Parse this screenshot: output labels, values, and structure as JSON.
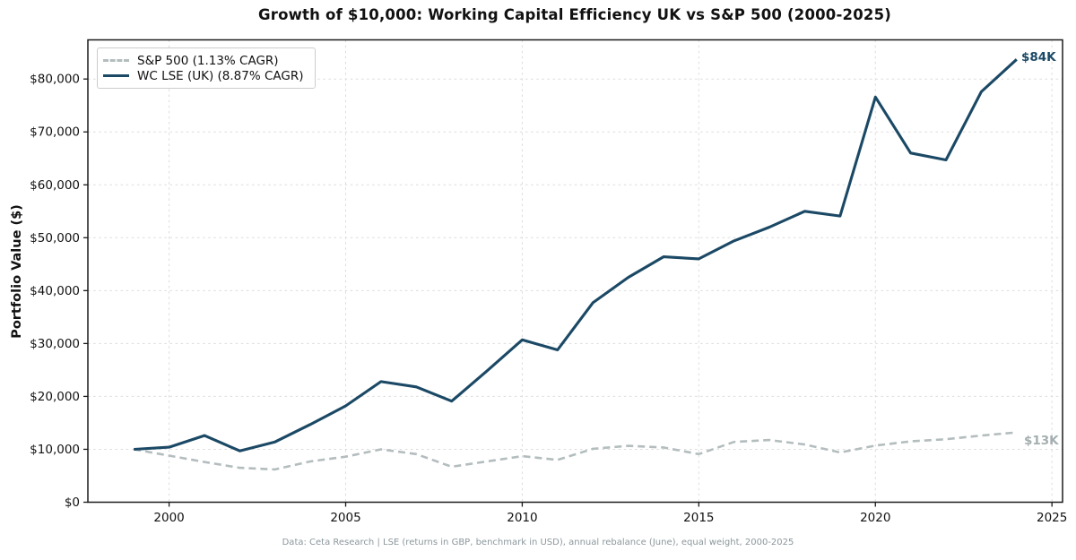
{
  "title": "Growth of $10,000: Working Capital Efficiency UK vs S&P 500 (2000-2025)",
  "y_axis_label": "Portfolio Value ($)",
  "footer": "Data: Ceta Research | LSE (returns in GBP, benchmark in USD), annual rebalance (June), equal weight, 2000-2025",
  "legend": {
    "items": [
      {
        "label": "S&P 500 (1.13% CAGR)"
      },
      {
        "label": "WC LSE (UK) (8.87% CAGR)"
      }
    ]
  },
  "colors": {
    "wc_line": "#1b4965",
    "sp_line": "#b4bdbe",
    "grid": "#dcdcdc",
    "spine": "#1a1a1a",
    "footer_text": "#8b979c"
  },
  "chart_data": {
    "type": "line",
    "title": "Growth of $10,000: Working Capital Efficiency UK vs S&P 500 (2000-2025)",
    "xlabel": "",
    "ylabel": "Portfolio Value ($)",
    "grid": true,
    "legend_position": "upper-left",
    "xlim": [
      1997.7,
      2025.3
    ],
    "ylim": [
      0,
      87400
    ],
    "x": [
      1999,
      2000,
      2001,
      2002,
      2003,
      2004,
      2005,
      2006,
      2007,
      2008,
      2009,
      2010,
      2011,
      2012,
      2013,
      2014,
      2015,
      2016,
      2017,
      2018,
      2019,
      2020,
      2021,
      2022,
      2023,
      2024
    ],
    "x_ticks": [
      {
        "value": 2000,
        "label": "2000"
      },
      {
        "value": 2005,
        "label": "2005"
      },
      {
        "value": 2010,
        "label": "2010"
      },
      {
        "value": 2015,
        "label": "2015"
      },
      {
        "value": 2020,
        "label": "2020"
      },
      {
        "value": 2025,
        "label": "2025"
      }
    ],
    "y_ticks": [
      {
        "value": 0,
        "label": "$0"
      },
      {
        "value": 10000,
        "label": "$10,000"
      },
      {
        "value": 20000,
        "label": "$20,000"
      },
      {
        "value": 30000,
        "label": "$30,000"
      },
      {
        "value": 40000,
        "label": "$40,000"
      },
      {
        "value": 50000,
        "label": "$50,000"
      },
      {
        "value": 60000,
        "label": "$60,000"
      },
      {
        "value": 70000,
        "label": "$70,000"
      },
      {
        "value": 80000,
        "label": "$80,000"
      }
    ],
    "series": [
      {
        "name": "S&P 500 (1.13% CAGR)",
        "color": "#b4bdbe",
        "dash": true,
        "width": 2.6,
        "end_label": "$13K",
        "values": [
          10000,
          8800,
          7600,
          6500,
          6200,
          7700,
          8600,
          10000,
          9100,
          6700,
          7700,
          8700,
          8000,
          10100,
          10650,
          10350,
          9100,
          11400,
          11750,
          10900,
          9400,
          10700,
          11500,
          11900,
          12600,
          13200
        ]
      },
      {
        "name": "WC LSE (UK) (8.87% CAGR)",
        "color": "#1b4965",
        "dash": false,
        "width": 3.1,
        "end_label": "$84K",
        "values": [
          10000,
          10400,
          12600,
          9700,
          11400,
          14700,
          18200,
          22800,
          21800,
          19100,
          24800,
          30700,
          28800,
          37700,
          42500,
          46400,
          46000,
          49400,
          52000,
          55000,
          54100,
          76600,
          66000,
          64700,
          77600,
          83700
        ]
      }
    ]
  }
}
